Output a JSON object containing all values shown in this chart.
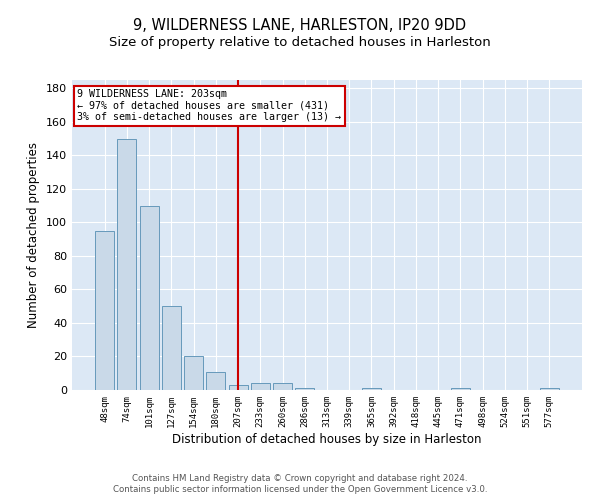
{
  "title": "9, WILDERNESS LANE, HARLESTON, IP20 9DD",
  "subtitle": "Size of property relative to detached houses in Harleston",
  "xlabel": "Distribution of detached houses by size in Harleston",
  "ylabel": "Number of detached properties",
  "categories": [
    "48sqm",
    "74sqm",
    "101sqm",
    "127sqm",
    "154sqm",
    "180sqm",
    "207sqm",
    "233sqm",
    "260sqm",
    "286sqm",
    "313sqm",
    "339sqm",
    "365sqm",
    "392sqm",
    "418sqm",
    "445sqm",
    "471sqm",
    "498sqm",
    "524sqm",
    "551sqm",
    "577sqm"
  ],
  "values": [
    95,
    150,
    110,
    50,
    20,
    11,
    3,
    4,
    4,
    1,
    0,
    0,
    1,
    0,
    0,
    0,
    1,
    0,
    0,
    0,
    1
  ],
  "bar_color": "#c9d9e8",
  "bar_edge_color": "#6699bb",
  "vline_x_index": 6,
  "vline_color": "#cc0000",
  "annotation_lines": [
    "9 WILDERNESS LANE: 203sqm",
    "← 97% of detached houses are smaller (431)",
    "3% of semi-detached houses are larger (13) →"
  ],
  "annotation_box_color": "#cc0000",
  "ylim": [
    0,
    185
  ],
  "yticks": [
    0,
    20,
    40,
    60,
    80,
    100,
    120,
    140,
    160,
    180
  ],
  "background_color": "#dce8f5",
  "footer_line1": "Contains HM Land Registry data © Crown copyright and database right 2024.",
  "footer_line2": "Contains public sector information licensed under the Open Government Licence v3.0.",
  "title_fontsize": 10.5,
  "subtitle_fontsize": 9.5,
  "xlabel_fontsize": 8.5,
  "ylabel_fontsize": 8.5
}
